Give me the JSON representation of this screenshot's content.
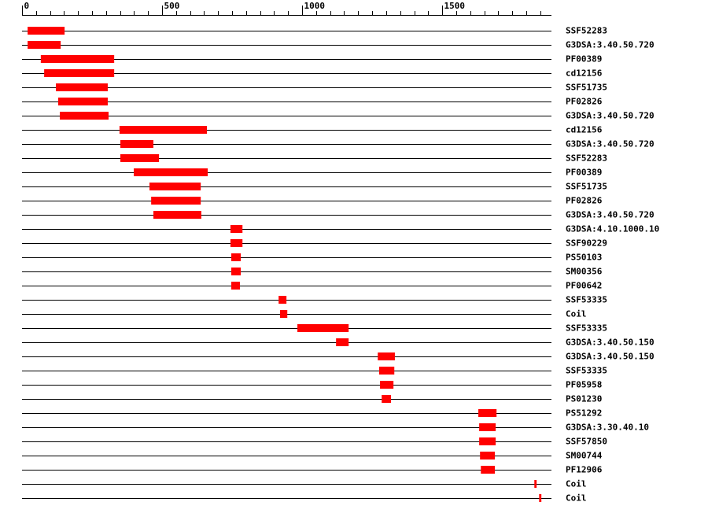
{
  "chart_data": {
    "type": "range",
    "color": "#ff0000",
    "xlim": [
      0,
      1890
    ],
    "xticks": [
      0,
      500,
      1000,
      1500
    ],
    "minor_xticks": [
      50,
      100,
      150,
      200,
      250,
      300,
      350,
      400,
      450,
      550,
      600,
      650,
      700,
      750,
      800,
      850,
      900,
      950,
      1050,
      1100,
      1150,
      1200,
      1250,
      1300,
      1350,
      1400,
      1450,
      1550,
      1600,
      1650,
      1700,
      1750,
      1800,
      1850
    ],
    "rows": [
      {
        "name": "SSF52283",
        "start": 20,
        "end": 152
      },
      {
        "name": "G3DSA:3.40.50.720",
        "start": 20,
        "end": 138
      },
      {
        "name": "PF00389",
        "start": 67,
        "end": 329
      },
      {
        "name": "cd12156",
        "start": 79,
        "end": 329
      },
      {
        "name": "SSF51735",
        "start": 121,
        "end": 306
      },
      {
        "name": "PF02826",
        "start": 129,
        "end": 306
      },
      {
        "name": "G3DSA:3.40.50.720",
        "start": 135,
        "end": 309
      },
      {
        "name": "cd12156",
        "start": 348,
        "end": 660
      },
      {
        "name": "G3DSA:3.40.50.720",
        "start": 351,
        "end": 469
      },
      {
        "name": "SSF52283",
        "start": 351,
        "end": 489
      },
      {
        "name": "PF00389",
        "start": 399,
        "end": 663
      },
      {
        "name": "SSF51735",
        "start": 455,
        "end": 638
      },
      {
        "name": "PF02826",
        "start": 461,
        "end": 638
      },
      {
        "name": "G3DSA:3.40.50.720",
        "start": 469,
        "end": 640
      },
      {
        "name": "G3DSA:4.10.1000.10",
        "start": 744,
        "end": 787
      },
      {
        "name": "SSF90229",
        "start": 744,
        "end": 787
      },
      {
        "name": "PS50103",
        "start": 747,
        "end": 781
      },
      {
        "name": "SM00356",
        "start": 747,
        "end": 781
      },
      {
        "name": "PF00642",
        "start": 747,
        "end": 778
      },
      {
        "name": "SSF53335",
        "start": 916,
        "end": 944
      },
      {
        "name": "Coil",
        "start": 921,
        "end": 947
      },
      {
        "name": "SSF53335",
        "start": 983,
        "end": 1166
      },
      {
        "name": "G3DSA:3.40.50.150",
        "start": 1121,
        "end": 1166
      },
      {
        "name": "G3DSA:3.40.50.150",
        "start": 1270,
        "end": 1331
      },
      {
        "name": "SSF53335",
        "start": 1275,
        "end": 1329
      },
      {
        "name": "PF05958",
        "start": 1278,
        "end": 1326
      },
      {
        "name": "PS01230",
        "start": 1284,
        "end": 1317
      },
      {
        "name": "PS51292",
        "start": 1629,
        "end": 1694
      },
      {
        "name": "G3DSA:3.30.40.10",
        "start": 1632,
        "end": 1691
      },
      {
        "name": "SSF57850",
        "start": 1632,
        "end": 1691
      },
      {
        "name": "SM00744",
        "start": 1635,
        "end": 1688
      },
      {
        "name": "PF12906",
        "start": 1638,
        "end": 1688
      },
      {
        "name": "Coil",
        "start": 1829,
        "end": 1837
      },
      {
        "name": "Coil",
        "start": 1846,
        "end": 1854
      }
    ]
  }
}
